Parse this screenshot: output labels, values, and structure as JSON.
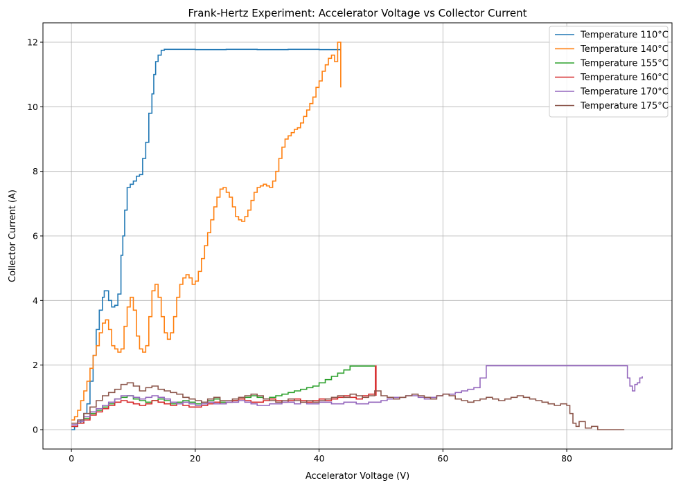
{
  "chart_data": {
    "type": "line",
    "title": "Frank-Hertz Experiment: Accelerator Voltage vs Collector Current",
    "xlabel": "Accelerator Voltage (V)",
    "ylabel": "Collector Current (A)",
    "xlim": [
      -4.6,
      97.0
    ],
    "ylim": [
      -0.6,
      12.6
    ],
    "xticks": [
      0,
      20,
      40,
      60,
      80
    ],
    "yticks": [
      0,
      2,
      4,
      6,
      8,
      10,
      12
    ],
    "xtick_labels": [
      "0",
      "20",
      "40",
      "60",
      "80"
    ],
    "ytick_labels": [
      "0",
      "2",
      "4",
      "6",
      "8",
      "10",
      "12"
    ],
    "grid": true,
    "legend_position": "top-right",
    "series": [
      {
        "name": "Temperature 110°C",
        "color": "#1f77b4",
        "x": [
          0,
          0.5,
          1,
          1.5,
          2,
          2.5,
          3,
          3.5,
          4,
          4.5,
          5,
          5.3,
          5.6,
          6,
          6.5,
          7,
          7.5,
          8,
          8.3,
          8.6,
          9,
          9.5,
          10,
          10.5,
          11,
          11.5,
          12,
          12.5,
          13,
          13.3,
          13.6,
          14,
          14.5,
          15,
          20,
          25,
          30,
          35,
          40,
          43.5
        ],
        "y": [
          0,
          0.1,
          0.2,
          0.3,
          0.5,
          0.8,
          1.5,
          2.3,
          3.1,
          3.7,
          4.1,
          4.3,
          4.3,
          4.0,
          3.8,
          3.85,
          4.2,
          5.4,
          6.0,
          6.8,
          7.5,
          7.6,
          7.7,
          7.85,
          7.9,
          8.4,
          8.9,
          9.8,
          10.4,
          11.0,
          11.4,
          11.6,
          11.75,
          11.78,
          11.77,
          11.78,
          11.77,
          11.78,
          11.77,
          11.77
        ]
      },
      {
        "name": "Temperature 140°C",
        "color": "#ff7f0e",
        "x": [
          0,
          0.5,
          1,
          1.5,
          2,
          2.5,
          3,
          3.5,
          4,
          4.5,
          5,
          5.5,
          6,
          6.5,
          7,
          7.5,
          8,
          8.5,
          9,
          9.5,
          10,
          10.5,
          11,
          11.5,
          12,
          12.5,
          13,
          13.5,
          14,
          14.5,
          15,
          15.5,
          16,
          16.5,
          17,
          17.5,
          18,
          18.5,
          19,
          19.5,
          20,
          20.5,
          21,
          21.5,
          22,
          22.5,
          23,
          23.5,
          24,
          24.5,
          25,
          25.5,
          26,
          26.5,
          27,
          27.5,
          28,
          28.5,
          29,
          29.5,
          30,
          30.5,
          31,
          31.5,
          32,
          32.5,
          33,
          33.5,
          34,
          34.5,
          35,
          35.5,
          36,
          36.5,
          37,
          37.5,
          38,
          38.5,
          39,
          39.5,
          40,
          40.5,
          41,
          41.5,
          42,
          42.5,
          43,
          43.5,
          43.5,
          43.5
        ],
        "y": [
          0.3,
          0.4,
          0.6,
          0.9,
          1.2,
          1.5,
          1.9,
          2.3,
          2.6,
          3.0,
          3.3,
          3.4,
          3.1,
          2.6,
          2.5,
          2.4,
          2.5,
          3.2,
          3.8,
          4.1,
          3.7,
          2.9,
          2.5,
          2.4,
          2.6,
          3.5,
          4.3,
          4.5,
          4.1,
          3.5,
          3.0,
          2.8,
          3.0,
          3.5,
          4.1,
          4.5,
          4.7,
          4.8,
          4.7,
          4.5,
          4.6,
          4.9,
          5.3,
          5.7,
          6.1,
          6.5,
          6.9,
          7.2,
          7.45,
          7.5,
          7.35,
          7.2,
          6.9,
          6.6,
          6.5,
          6.45,
          6.6,
          6.8,
          7.1,
          7.35,
          7.5,
          7.55,
          7.6,
          7.55,
          7.5,
          7.7,
          8.0,
          8.4,
          8.75,
          9.0,
          9.1,
          9.2,
          9.3,
          9.35,
          9.5,
          9.7,
          9.9,
          10.1,
          10.3,
          10.6,
          10.8,
          11.1,
          11.3,
          11.5,
          11.6,
          11.4,
          12.0,
          10.6,
          11.5,
          11.6
        ]
      },
      {
        "name": "Temperature 155°C",
        "color": "#2ca02c",
        "x": [
          0,
          1,
          2,
          3,
          4,
          5,
          6,
          7,
          8,
          9,
          10,
          11,
          12,
          13,
          14,
          15,
          16,
          17,
          18,
          19,
          20,
          21,
          22,
          23,
          24,
          25,
          26,
          27,
          28,
          29,
          30,
          31,
          32,
          33,
          34,
          35,
          36,
          37,
          38,
          39,
          40,
          41,
          42,
          43,
          44,
          45,
          46,
          47,
          48,
          49
        ],
        "y": [
          0.1,
          0.2,
          0.35,
          0.5,
          0.6,
          0.7,
          0.8,
          0.95,
          1.0,
          1.05,
          0.95,
          0.9,
          0.85,
          0.9,
          0.95,
          0.9,
          0.8,
          0.85,
          0.9,
          0.85,
          0.8,
          0.85,
          0.9,
          0.95,
          0.85,
          0.85,
          0.9,
          0.95,
          1.0,
          1.05,
          1.0,
          0.95,
          1.0,
          1.05,
          1.1,
          1.15,
          1.2,
          1.25,
          1.3,
          1.35,
          1.45,
          1.55,
          1.65,
          1.75,
          1.85,
          1.97,
          1.97,
          1.97,
          1.97,
          1.97
        ]
      },
      {
        "name": "Temperature 160°C",
        "color": "#d62728",
        "x": [
          0,
          1,
          2,
          3,
          4,
          5,
          6,
          7,
          8,
          9,
          10,
          11,
          12,
          13,
          14,
          15,
          16,
          17,
          18,
          19,
          20,
          21,
          22,
          23,
          24,
          25,
          26,
          27,
          28,
          29,
          30,
          31,
          32,
          33,
          34,
          35,
          36,
          37,
          38,
          39,
          40,
          41,
          42,
          43,
          44,
          45,
          46,
          47,
          48,
          49,
          49.1,
          49.2
        ],
        "y": [
          0.1,
          0.2,
          0.3,
          0.45,
          0.55,
          0.65,
          0.75,
          0.85,
          0.9,
          0.85,
          0.8,
          0.75,
          0.8,
          0.9,
          0.85,
          0.8,
          0.75,
          0.8,
          0.75,
          0.7,
          0.7,
          0.75,
          0.8,
          0.85,
          0.8,
          0.85,
          0.9,
          0.95,
          0.9,
          0.85,
          0.85,
          0.9,
          0.95,
          0.9,
          0.85,
          0.9,
          0.95,
          0.9,
          0.85,
          0.9,
          0.95,
          0.9,
          0.95,
          1.0,
          1.05,
          1.0,
          0.95,
          1.05,
          1.1,
          1.2,
          1.97,
          1.05
        ]
      },
      {
        "name": "Temperature 170°C",
        "color": "#9467bd",
        "x": [
          0,
          1,
          2,
          3,
          4,
          5,
          6,
          7,
          8,
          9,
          10,
          11,
          12,
          13,
          14,
          15,
          16,
          17,
          18,
          19,
          20,
          21,
          22,
          23,
          24,
          25,
          26,
          27,
          28,
          29,
          30,
          31,
          32,
          33,
          34,
          35,
          36,
          37,
          38,
          39,
          40,
          41,
          42,
          43,
          44,
          45,
          46,
          47,
          48,
          49,
          50,
          51,
          52,
          53,
          54,
          55,
          56,
          57,
          58,
          59,
          60,
          61,
          62,
          63,
          64,
          65,
          66,
          67,
          70,
          75,
          80,
          85,
          89.5,
          89.8,
          90.2,
          90.6,
          91,
          91.4,
          91.8,
          92.2
        ],
        "y": [
          0.15,
          0.25,
          0.4,
          0.55,
          0.65,
          0.75,
          0.85,
          0.95,
          1.05,
          1.05,
          1.0,
          0.95,
          1.0,
          1.05,
          1.0,
          0.95,
          0.85,
          0.8,
          0.85,
          0.8,
          0.75,
          0.8,
          0.85,
          0.8,
          0.8,
          0.85,
          0.85,
          0.9,
          0.85,
          0.8,
          0.75,
          0.75,
          0.8,
          0.8,
          0.85,
          0.85,
          0.8,
          0.85,
          0.8,
          0.8,
          0.85,
          0.85,
          0.8,
          0.8,
          0.85,
          0.85,
          0.8,
          0.8,
          0.85,
          0.85,
          0.9,
          0.95,
          1.0,
          1.0,
          1.05,
          1.05,
          1.0,
          0.95,
          1.0,
          1.05,
          1.1,
          1.1,
          1.15,
          1.2,
          1.25,
          1.3,
          1.6,
          1.98,
          1.98,
          1.98,
          1.98,
          1.98,
          1.98,
          1.6,
          1.35,
          1.2,
          1.4,
          1.45,
          1.6,
          1.65
        ]
      },
      {
        "name": "Temperature 175°C",
        "color": "#8c564b",
        "x": [
          0,
          1,
          2,
          3,
          4,
          5,
          6,
          7,
          8,
          9,
          10,
          11,
          12,
          13,
          14,
          15,
          16,
          17,
          18,
          19,
          20,
          21,
          22,
          23,
          24,
          25,
          26,
          27,
          28,
          29,
          30,
          31,
          32,
          33,
          34,
          35,
          36,
          37,
          38,
          39,
          40,
          41,
          42,
          43,
          44,
          45,
          46,
          47,
          48,
          49,
          50,
          51,
          52,
          53,
          54,
          55,
          56,
          57,
          58,
          59,
          60,
          61,
          62,
          63,
          64,
          65,
          66,
          67,
          68,
          69,
          70,
          71,
          72,
          73,
          74,
          75,
          76,
          77,
          78,
          79,
          80,
          80.5,
          81,
          81.5,
          82,
          83,
          84,
          85,
          86,
          87,
          88,
          89.3
        ],
        "y": [
          0.2,
          0.3,
          0.5,
          0.7,
          0.9,
          1.05,
          1.15,
          1.25,
          1.4,
          1.45,
          1.35,
          1.2,
          1.3,
          1.35,
          1.25,
          1.2,
          1.15,
          1.1,
          1.0,
          0.95,
          0.9,
          0.85,
          0.95,
          1.0,
          0.9,
          0.9,
          0.95,
          1.0,
          1.05,
          1.1,
          1.05,
          0.95,
          0.9,
          0.85,
          0.9,
          0.95,
          0.9,
          0.85,
          0.9,
          0.85,
          0.9,
          0.95,
          1.0,
          1.05,
          1.0,
          1.1,
          1.05,
          1.0,
          1.05,
          1.2,
          1.05,
          1.0,
          0.95,
          1.0,
          1.05,
          1.1,
          1.05,
          1.0,
          0.95,
          1.05,
          1.1,
          1.05,
          0.95,
          0.9,
          0.85,
          0.9,
          0.95,
          1.0,
          0.95,
          0.9,
          0.95,
          1.0,
          1.05,
          1.0,
          0.95,
          0.9,
          0.85,
          0.8,
          0.75,
          0.8,
          0.75,
          0.5,
          0.2,
          0.1,
          0.25,
          0.05,
          0.1,
          0.0,
          0.0,
          0.0,
          0.0,
          0.0
        ]
      }
    ]
  }
}
